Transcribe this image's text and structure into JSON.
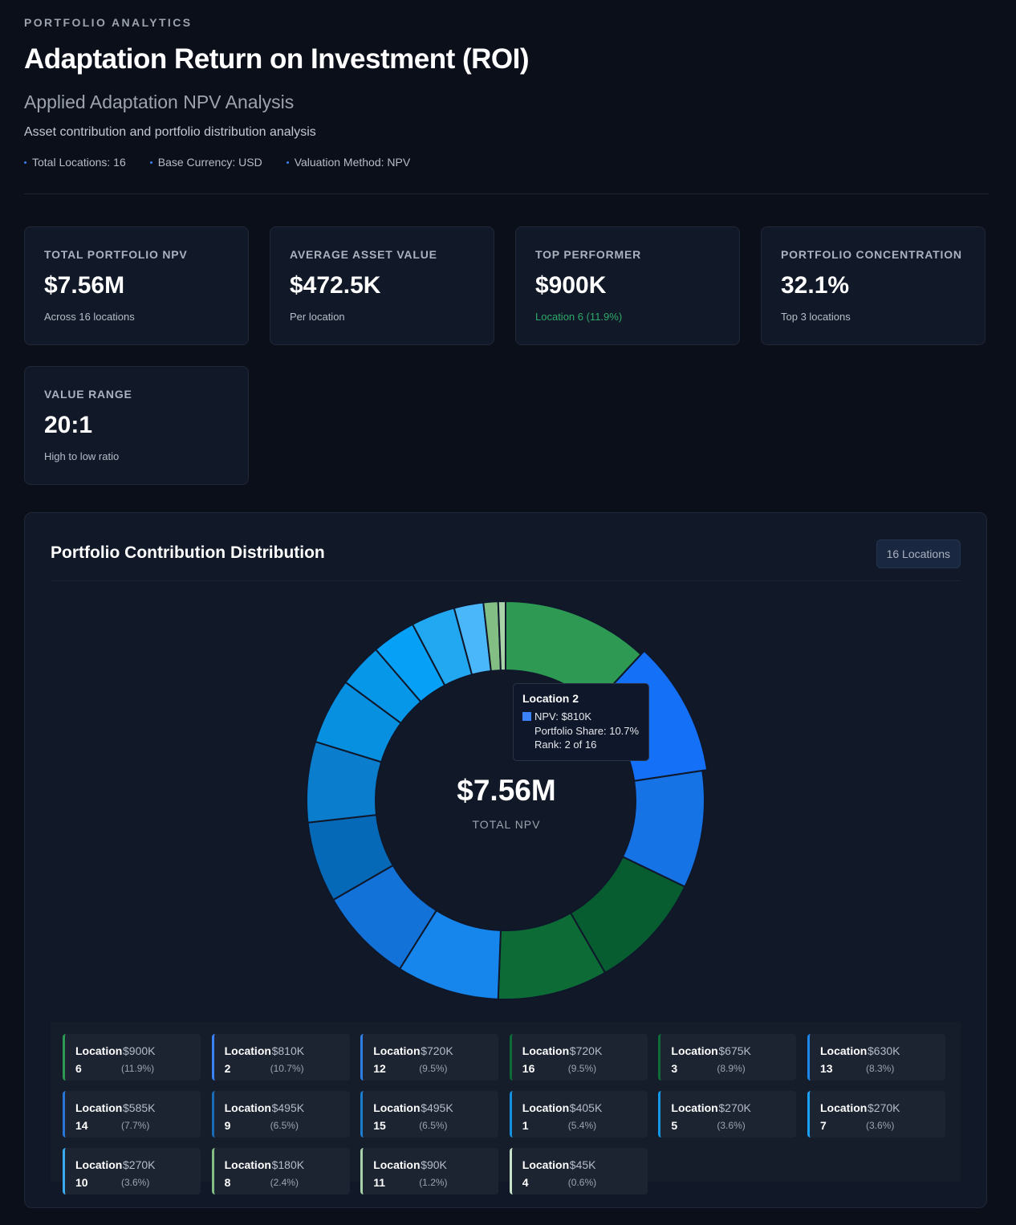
{
  "header": {
    "eyebrow": "PORTFOLIO ANALYTICS",
    "title": "Adaptation Return on Investment (ROI)",
    "subtitle": "Applied Adaptation NPV Analysis",
    "description": "Asset contribution and portfolio distribution analysis",
    "meta": [
      "Total Locations: 16",
      "Base Currency: USD",
      "Valuation Method: NPV"
    ]
  },
  "kpis": [
    {
      "label": "TOTAL PORTFOLIO NPV",
      "value": "$7.56M",
      "sub": "Across 16 locations"
    },
    {
      "label": "AVERAGE ASSET VALUE",
      "value": "$472.5K",
      "sub": "Per location"
    },
    {
      "label": "TOP PERFORMER",
      "value": "$900K",
      "sub": "Location 6 (11.9%)"
    },
    {
      "label": "PORTFOLIO CONCENTRATION",
      "value": "32.1%",
      "sub": "Top 3 locations"
    },
    {
      "label": "VALUE RANGE",
      "value": "20:1",
      "sub": "High to low ratio"
    }
  ],
  "panel": {
    "title": "Portfolio Contribution Distribution",
    "badge": "16 Locations",
    "center_value": "$7.56M",
    "center_label": "TOTAL NPV"
  },
  "tooltip": {
    "title": "Location 2",
    "npv": "NPV: $810K",
    "share": "Portfolio Share: 10.7%",
    "rank": "Rank: 2 of 16",
    "swatch": "#3b82f6"
  },
  "chart_data": {
    "type": "pie",
    "variant": "donut",
    "title": "Portfolio Contribution Distribution",
    "total": "$7.56M",
    "categories": [
      "Location 6",
      "Location 2",
      "Location 12",
      "Location 16",
      "Location 3",
      "Location 13",
      "Location 14",
      "Location 9",
      "Location 15",
      "Location 1",
      "Location 5",
      "Location 7",
      "Location 10",
      "Location 8",
      "Location 11",
      "Location 4"
    ],
    "values": [
      900,
      810,
      720,
      720,
      675,
      630,
      585,
      495,
      495,
      405,
      270,
      270,
      270,
      180,
      90,
      45
    ],
    "unit": "$K",
    "colors": [
      "#2e9952",
      "#1570f8",
      "#1673e6",
      "#075d30",
      "#0d6b36",
      "#1686ec",
      "#1272d8",
      "#0669b8",
      "#0b7dcd",
      "#0690df",
      "#0797e8",
      "#06a0f6",
      "#22a8f1",
      "#4ab7fb",
      "#83be85",
      "#a8d2a8"
    ],
    "highlight": "Location 2"
  },
  "legend": [
    {
      "name": "Location",
      "num": "6",
      "value": "$900K",
      "pct": "(11.9%)",
      "color": "#2e9952"
    },
    {
      "name": "Location",
      "num": "2",
      "value": "$810K",
      "pct": "(10.7%)",
      "color": "#3b82f6"
    },
    {
      "name": "Location",
      "num": "12",
      "value": "$720K",
      "pct": "(9.5%)",
      "color": "#2f7ee6"
    },
    {
      "name": "Location",
      "num": "16",
      "value": "$720K",
      "pct": "(9.5%)",
      "color": "#0d6b36"
    },
    {
      "name": "Location",
      "num": "3",
      "value": "$675K",
      "pct": "(8.9%)",
      "color": "#0f6e38"
    },
    {
      "name": "Location",
      "num": "13",
      "value": "$630K",
      "pct": "(8.3%)",
      "color": "#1c86ec"
    },
    {
      "name": "Location",
      "num": "14",
      "value": "$585K",
      "pct": "(7.7%)",
      "color": "#2a76d8"
    },
    {
      "name": "Location",
      "num": "9",
      "value": "$495K",
      "pct": "(6.5%)",
      "color": "#1a6cb8"
    },
    {
      "name": "Location",
      "num": "15",
      "value": "$495K",
      "pct": "(6.5%)",
      "color": "#1b7dcd"
    },
    {
      "name": "Location",
      "num": "1",
      "value": "$405K",
      "pct": "(5.4%)",
      "color": "#1590df"
    },
    {
      "name": "Location",
      "num": "5",
      "value": "$270K",
      "pct": "(3.6%)",
      "color": "#1597e8"
    },
    {
      "name": "Location",
      "num": "7",
      "value": "$270K",
      "pct": "(3.6%)",
      "color": "#1aa0f6"
    },
    {
      "name": "Location",
      "num": "10",
      "value": "$270K",
      "pct": "(3.6%)",
      "color": "#3aaaf1"
    },
    {
      "name": "Location",
      "num": "8",
      "value": "$180K",
      "pct": "(2.4%)",
      "color": "#83be85"
    },
    {
      "name": "Location",
      "num": "11",
      "value": "$90K",
      "pct": "(1.2%)",
      "color": "#a8d2a8"
    },
    {
      "name": "Location",
      "num": "4",
      "value": "$45K",
      "pct": "(0.6%)",
      "color": "#c8e3c8"
    }
  ]
}
